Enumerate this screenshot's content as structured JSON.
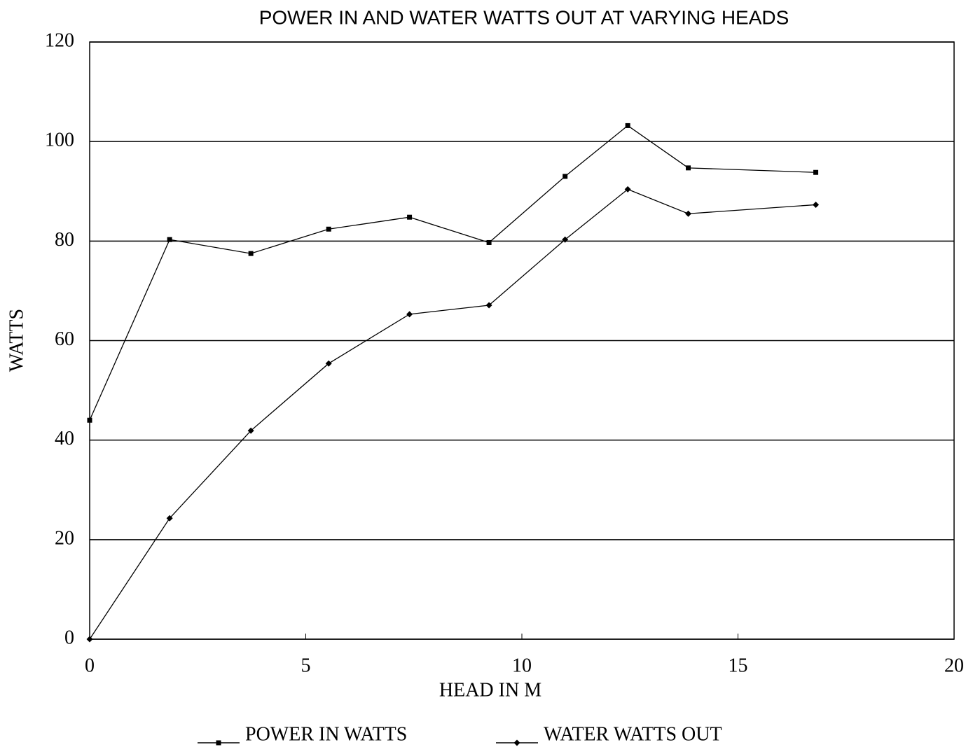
{
  "chart_data": {
    "type": "line",
    "title": "POWER IN AND WATER WATTS OUT AT VARYING HEADS",
    "x_label": "HEAD IN M",
    "y_label": "WATTS",
    "x": [
      0,
      1.85,
      3.73,
      5.53,
      7.4,
      9.24,
      11,
      12.45,
      13.85,
      16.8
    ],
    "series": [
      {
        "name": "POWER IN WATTS",
        "color": "#000000",
        "marker": "square",
        "values": [
          44,
          80.3,
          77.5,
          82.4,
          84.8,
          79.7,
          93,
          103.2,
          94.7,
          93.8
        ]
      },
      {
        "name": "WATER WATTS OUT",
        "color": "#000000",
        "marker": "diamond",
        "values": [
          0,
          24.3,
          41.9,
          55.4,
          65.3,
          67.1,
          80.3,
          90.4,
          85.5,
          87.3
        ]
      }
    ],
    "xlim": [
      0,
      20
    ],
    "xticks": [
      0,
      5,
      10,
      15,
      20
    ],
    "ylim": [
      0,
      120
    ],
    "yticks": [
      0,
      20,
      40,
      60,
      80,
      100,
      120
    ],
    "grid": true,
    "legend": "bottom"
  }
}
